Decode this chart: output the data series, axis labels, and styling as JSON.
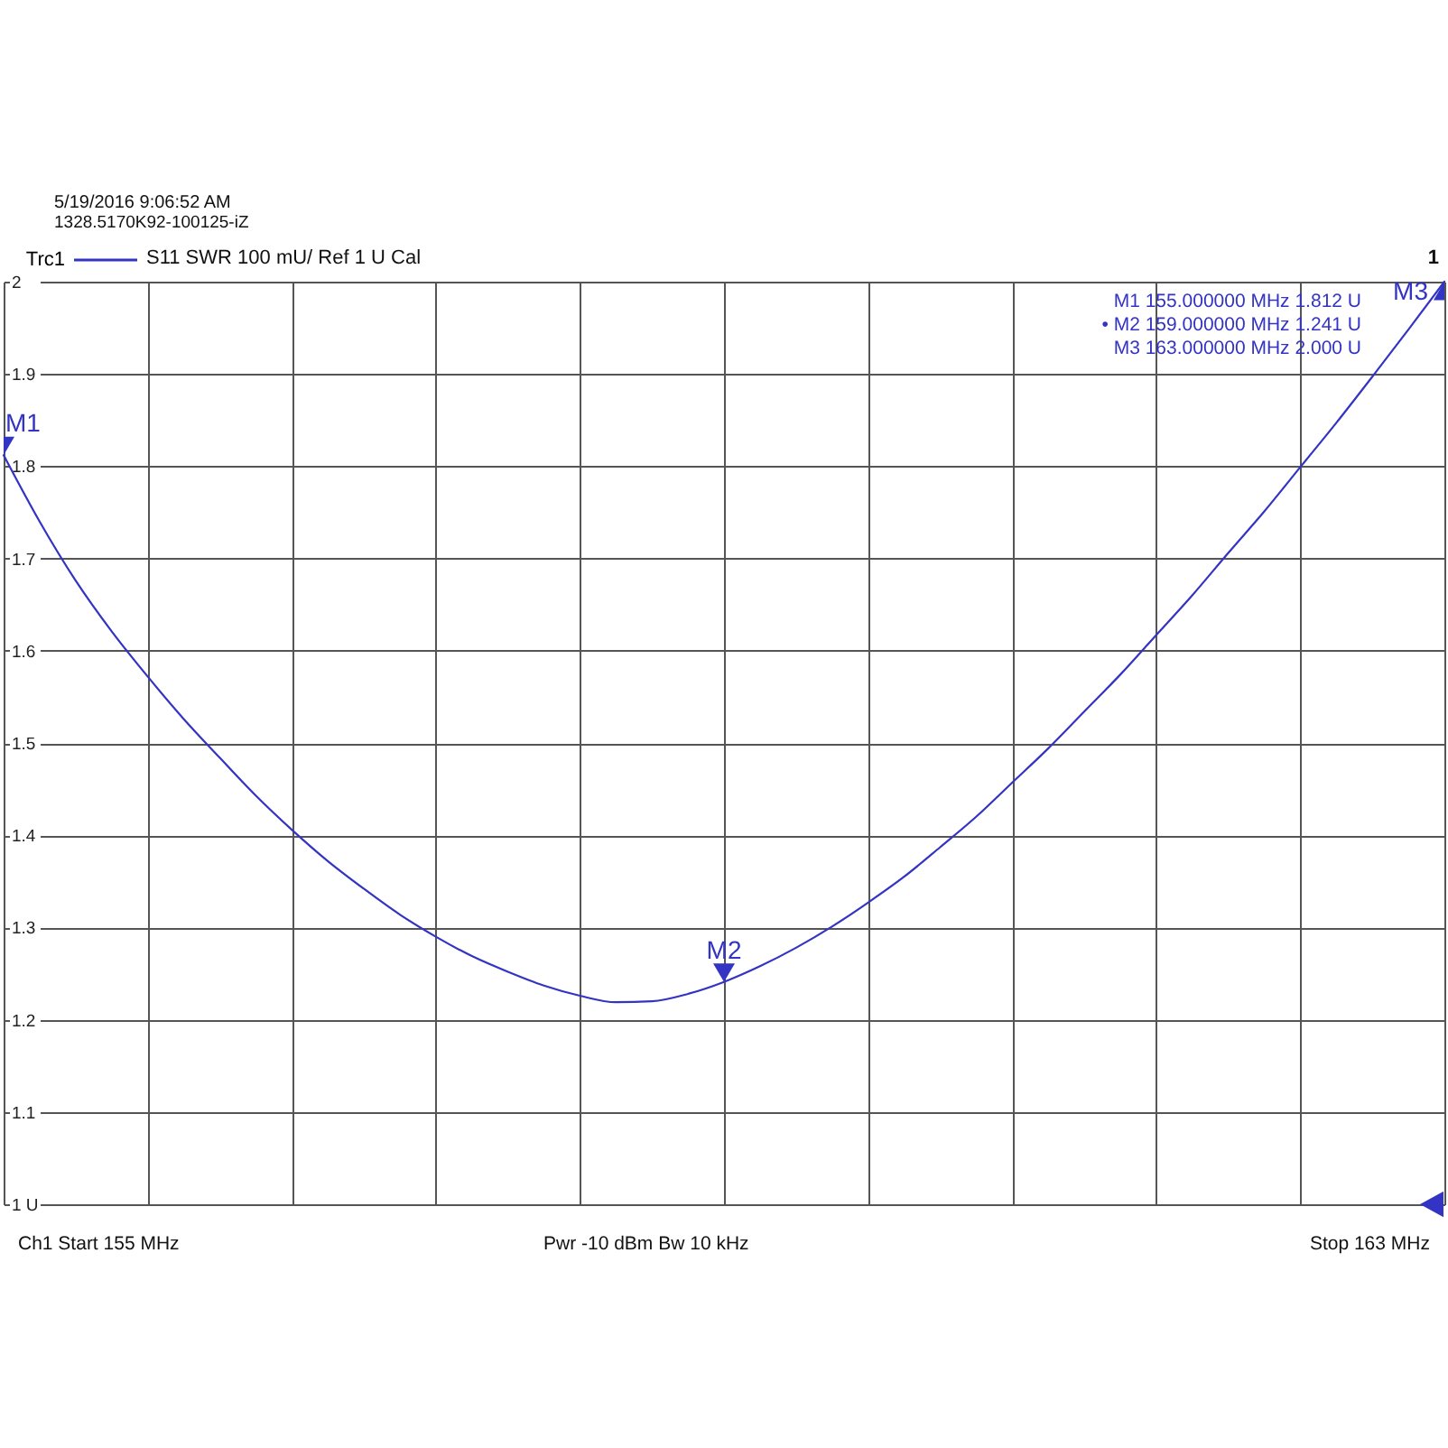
{
  "chart_data": {
    "type": "line",
    "categories": [
      null,
      null,
      null,
      null,
      null,
      null,
      null,
      null,
      null,
      null,
      null,
      null,
      null,
      null,
      null,
      null,
      null,
      null,
      null,
      null,
      null,
      null,
      null,
      null,
      null,
      null,
      null,
      null,
      null,
      null,
      null,
      null,
      null,
      null,
      null,
      null,
      null,
      null,
      null,
      null,
      null
    ],
    "series": [
      {
        "name": "Trc1",
        "color": "#3333c4",
        "values": [
          1.812,
          1.74,
          1.676,
          1.621,
          1.572,
          1.526,
          1.484,
          1.443,
          1.406,
          1.372,
          1.342,
          1.314,
          1.29,
          1.269,
          1.252,
          1.237,
          1.226,
          1.219,
          1.22,
          1.228,
          1.241,
          1.258,
          1.278,
          1.301,
          1.327,
          1.355,
          1.387,
          1.42,
          1.457,
          1.494,
          1.534,
          1.574,
          1.617,
          1.66,
          1.706,
          1.751,
          1.799,
          1.847,
          1.897,
          1.948,
          2
        ]
      }
    ],
    "ylim": [
      1,
      2
    ],
    "yticks": [
      {
        "value": 1,
        "label": "1 U"
      },
      1.1,
      1.2,
      1.3,
      1.4,
      1.5,
      1.6,
      1.7,
      1.8,
      1.9,
      2
    ],
    "grid": true,
    "legend": "top left",
    "tick_labels": "y",
    "annotations": [
      "5/19/2016 9:06:52 AM",
      "1328.5170K92-100125-iZ",
      "S11 SWR 100 mU/ Ref 1 U Cal",
      "1",
      "M1 155.000000 MHz 1.812 U",
      "• M2 159.000000 MHz 1.241 U",
      "M3 163.000000 MHz 2.000 U",
      "Ch1 Start 155 MHz",
      "Pwr -10 dBm Bw 10 kHz",
      "Stop 163 MHz",
      "M1",
      {
        "text": "M2",
        "y": 1.241
      },
      "M3"
    ]
  }
}
